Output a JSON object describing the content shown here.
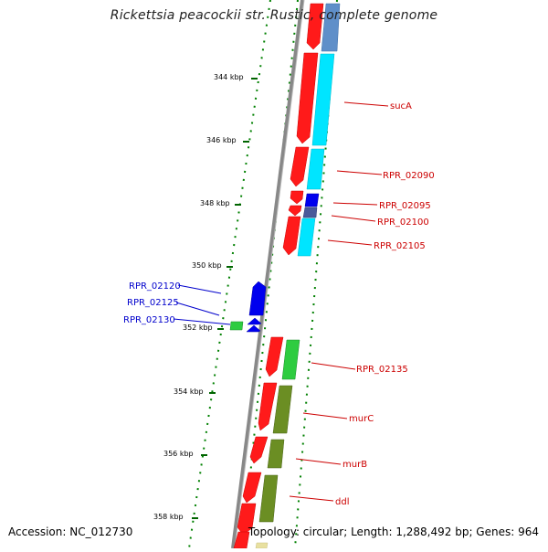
{
  "title": "Rickettsia peacockii str. Rustic, complete genome",
  "footer": {
    "accession": "Accession: NC_012730",
    "summary": "Topology: circular; Length: 1,288,492 bp; Genes: 964"
  },
  "ticks": [
    {
      "label": "344 kbp"
    },
    {
      "label": "346 kbp"
    },
    {
      "label": "348 kbp"
    },
    {
      "label": "350 kbp"
    },
    {
      "label": "352 kbp"
    },
    {
      "label": "354 kbp"
    },
    {
      "label": "356 kbp"
    },
    {
      "label": "358 kbp"
    }
  ],
  "gene_labels_right": [
    {
      "label": "sucA"
    },
    {
      "label": "RPR_02090"
    },
    {
      "label": "RPR_02095"
    },
    {
      "label": "RPR_02100"
    },
    {
      "label": "RPR_02105"
    },
    {
      "label": "RPR_02135"
    },
    {
      "label": "murC"
    },
    {
      "label": "murB"
    },
    {
      "label": "ddl"
    }
  ],
  "gene_labels_left": [
    {
      "label": "RPR_02120"
    },
    {
      "label": "RPR_02125"
    },
    {
      "label": "RPR_02130"
    }
  ],
  "colors": {
    "forward_cds": "#ff0000",
    "reverse_cds": "#0000ff",
    "cog_cyan": "#00e5ff",
    "cog_green": "#2ecc40",
    "cog_olive": "#6b8e23",
    "cog_steel": "#4682b4",
    "cog_slate": "#4a5a9a",
    "right_label": "#cc0000",
    "left_label": "#0000cc",
    "dotted_ring": "#008000",
    "backbone": "#888888"
  }
}
